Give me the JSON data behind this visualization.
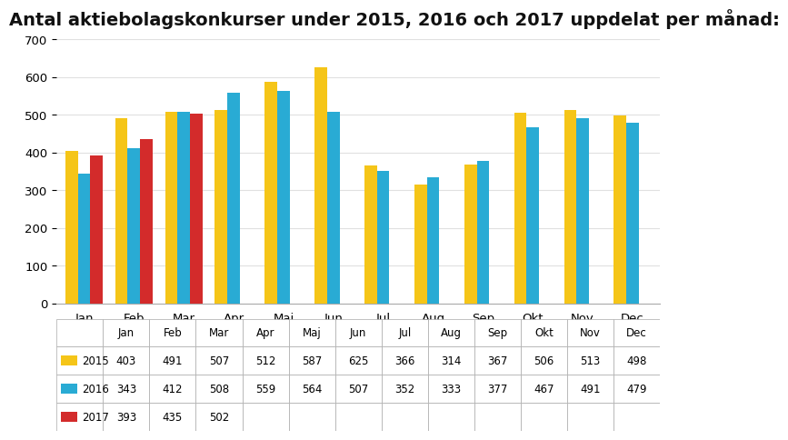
{
  "title": "Antal aktiebolagskonkurser under 2015, 2016 och 2017 uppdelat per månad:",
  "months": [
    "Jan",
    "Feb",
    "Mar",
    "Apr",
    "Maj",
    "Jun",
    "Jul",
    "Aug",
    "Sep",
    "Okt",
    "Nov",
    "Dec"
  ],
  "series": {
    "2015": [
      403,
      491,
      507,
      512,
      587,
      625,
      366,
      314,
      367,
      506,
      513,
      498
    ],
    "2016": [
      343,
      412,
      508,
      559,
      564,
      507,
      352,
      333,
      377,
      467,
      491,
      479
    ],
    "2017": [
      393,
      435,
      502,
      null,
      null,
      null,
      null,
      null,
      null,
      null,
      null,
      null
    ]
  },
  "colors": {
    "2015": "#F5C518",
    "2016": "#29ABD4",
    "2017": "#D32B2B"
  },
  "ylim": [
    0,
    700
  ],
  "yticks": [
    0,
    100,
    200,
    300,
    400,
    500,
    600,
    700
  ],
  "table_data": {
    "2015": [
      "403",
      "491",
      "507",
      "512",
      "587",
      "625",
      "366",
      "314",
      "367",
      "506",
      "513",
      "498"
    ],
    "2016": [
      "343",
      "412",
      "508",
      "559",
      "564",
      "507",
      "352",
      "333",
      "377",
      "467",
      "491",
      "479"
    ],
    "2017": [
      "393",
      "435",
      "502",
      "",
      "",
      "",
      "",
      "",
      "",
      "",
      "",
      ""
    ]
  },
  "background_color": "#FFFFFF",
  "title_fontsize": 14,
  "bar_width": 0.25,
  "grid_color": "#E0E0E0"
}
